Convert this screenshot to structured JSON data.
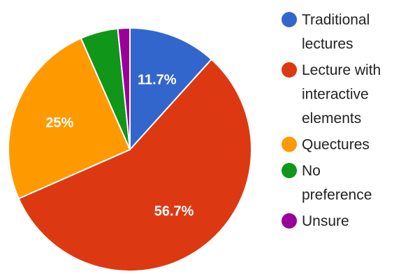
{
  "chart_data": {
    "type": "pie",
    "title": "",
    "start_angle_deg": 0,
    "legend_position": "right",
    "slices": [
      {
        "label": [
          "Traditional",
          "lectures"
        ],
        "value": 11.7,
        "display": "11.7%",
        "color": "#3366cc"
      },
      {
        "label": [
          "Lecture with",
          "interactive",
          "elements"
        ],
        "value": 56.7,
        "display": "56.7%",
        "color": "#dc3912"
      },
      {
        "label": [
          "Quectures"
        ],
        "value": 25.0,
        "display": "25%",
        "color": "#ff9900"
      },
      {
        "label": [
          "No",
          "preference"
        ],
        "value": 5.0,
        "display": "",
        "color": "#109618"
      },
      {
        "label": [
          "Unsure"
        ],
        "value": 1.6,
        "display": "",
        "color": "#990099"
      }
    ]
  }
}
